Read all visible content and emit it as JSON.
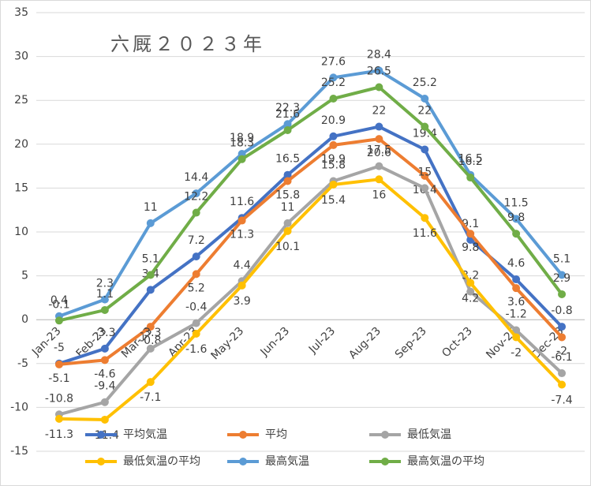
{
  "chart_data": {
    "type": "line",
    "title": "六厩２０２３年",
    "categories": [
      "Jan-23",
      "Feb-23",
      "Mar-23",
      "Apr-23",
      "May-23",
      "Jun-23",
      "Jul-23",
      "Aug-23",
      "Sep-23",
      "Oct-23",
      "Nov-23",
      "Dec-23"
    ],
    "ylim": [
      -15,
      35
    ],
    "yticks": [
      -15,
      -10,
      -5,
      0,
      5,
      10,
      15,
      20,
      25,
      30,
      35
    ],
    "grid": true,
    "legend": "bottom",
    "series": [
      {
        "name": "平均気温",
        "color": "#4472c4",
        "values": [
          -5,
          -3.3,
          3.4,
          7.2,
          11.6,
          16.5,
          20.9,
          22,
          19.4,
          9.1,
          4.6,
          -0.8
        ]
      },
      {
        "name": "平均",
        "color": "#ed7d31",
        "values": [
          -5.1,
          -4.6,
          -0.8,
          5.2,
          11.3,
          15.8,
          19.9,
          20.6,
          16.4,
          9.8,
          3.6,
          -2
        ]
      },
      {
        "name": "最低気温",
        "color": "#a5a5a5",
        "values": [
          -10.8,
          -9.4,
          -3.3,
          -0.4,
          4.4,
          11,
          15.8,
          17.5,
          15,
          3.2,
          -1.2,
          -6.1
        ]
      },
      {
        "name": "最低気温の平均",
        "color": "#ffc000",
        "values": [
          -11.3,
          -11.4,
          -7.1,
          -1.6,
          3.9,
          10.1,
          15.4,
          16,
          11.6,
          4.2,
          -2,
          -7.4
        ]
      },
      {
        "name": "最高気温",
        "color": "#5b9bd5",
        "values": [
          0.4,
          2.3,
          11,
          14.4,
          18.9,
          22.3,
          27.6,
          28.4,
          25.2,
          16.5,
          11.5,
          5.1
        ]
      },
      {
        "name": "最高気温の平均",
        "color": "#70ad47",
        "values": [
          -0.1,
          1.1,
          5.1,
          12.2,
          18.3,
          21.6,
          25.2,
          26.5,
          22,
          16.2,
          9.8,
          2.9
        ]
      }
    ]
  }
}
